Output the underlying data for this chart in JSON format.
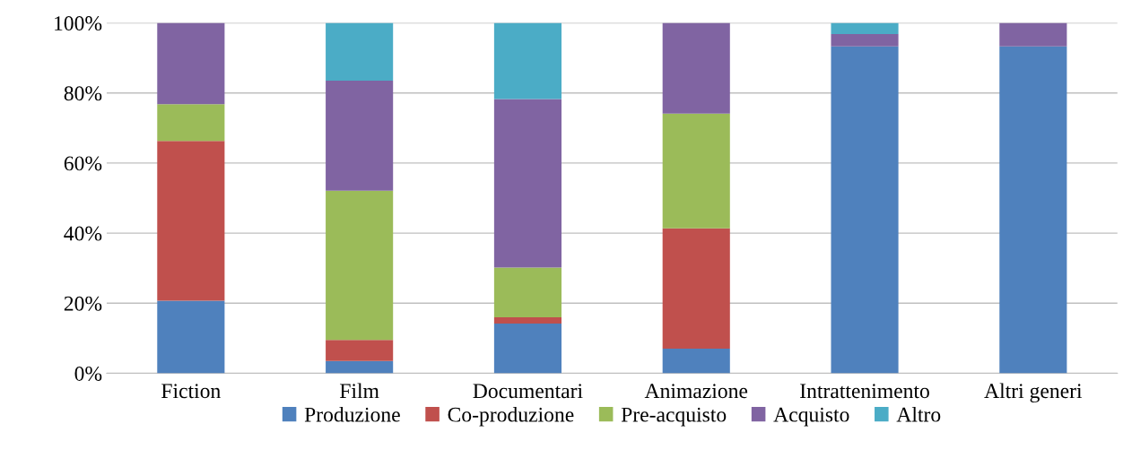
{
  "chart_data": {
    "type": "bar",
    "stacked": true,
    "categories": [
      "Fiction",
      "Film",
      "Documentari",
      "Animazione",
      "Intrattenimento",
      "Altri generi"
    ],
    "series": [
      {
        "name": "Produzione",
        "color": "#4f81bd",
        "values": [
          20.7,
          3.5,
          14.2,
          7.0,
          93.3,
          93.3
        ]
      },
      {
        "name": "Co-produzione",
        "color": "#c0504d",
        "values": [
          45.6,
          6.0,
          1.8,
          34.4,
          0,
          0
        ]
      },
      {
        "name": "Pre-acquisto",
        "color": "#9bbb59",
        "values": [
          10.5,
          42.6,
          14.2,
          32.7,
          0,
          0
        ]
      },
      {
        "name": "Acquisto",
        "color": "#8064a2",
        "values": [
          23.2,
          31.4,
          48.1,
          25.9,
          3.5,
          6.7
        ]
      },
      {
        "name": "Altro",
        "color": "#4bacc6",
        "values": [
          0,
          16.5,
          21.7,
          0,
          3.2,
          0
        ]
      }
    ],
    "ylim": [
      0,
      100
    ],
    "yticks": [
      {
        "value": 0,
        "label": "0%"
      },
      {
        "value": 20,
        "label": "20%"
      },
      {
        "value": 40,
        "label": "40%"
      },
      {
        "value": 60,
        "label": "60%"
      },
      {
        "value": 80,
        "label": "80%"
      },
      {
        "value": 100,
        "label": "100%"
      }
    ],
    "grid": "y",
    "legend": "bottom"
  }
}
